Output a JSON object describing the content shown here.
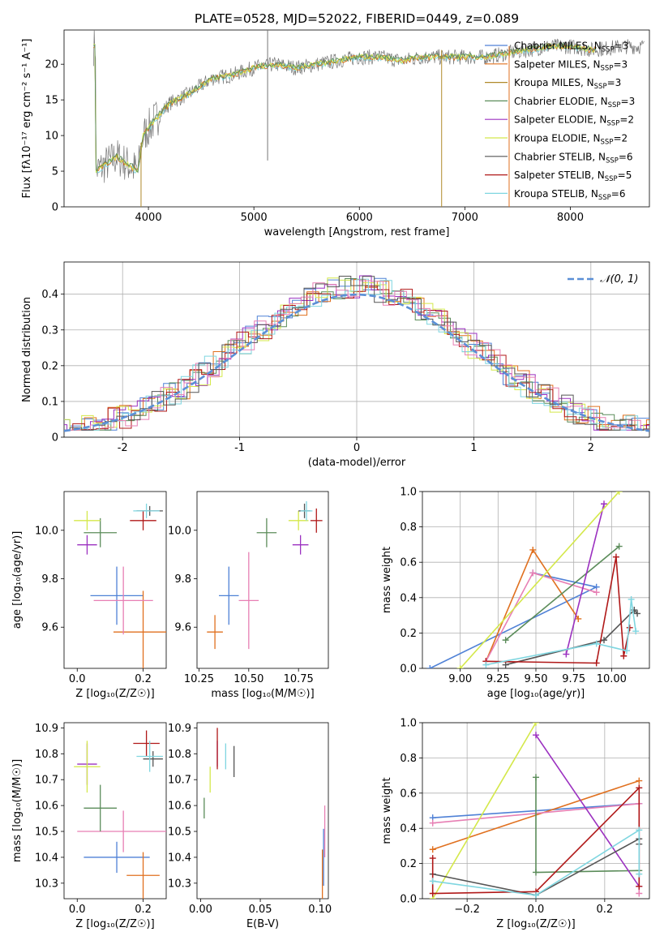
{
  "title": "PLATE=0528, MJD=52022, FIBERID=0449, z=0.089",
  "colors": {
    "Chabrier MILES": "#4f81d6",
    "Salpeter MILES": "#e0701f",
    "Kroupa MILES": "#b08a2a",
    "Chabrier ELODIE": "#5b8c5a",
    "Salpeter ELODIE": "#9b30c0",
    "Kroupa ELODIE": "#d4e84a",
    "Chabrier STELIB": "#555555",
    "Salpeter STELIB": "#b01818",
    "Kroupa STELIB": "#7fd6e0",
    "Pink model": "#e77fb4",
    "Normal curve": "#5b8fd6"
  },
  "chart_data": [
    {
      "id": "spectrum",
      "type": "line",
      "title": "PLATE=0528, MJD=52022, FIBERID=0449, z=0.089",
      "xlabel": "wavelength [Angstrom, rest frame]",
      "ylabel": "Flux [fλ10⁻¹⁷ erg cm⁻² s⁻¹ A⁻¹]",
      "xlim": [
        3200,
        8750
      ],
      "ylim": [
        0,
        24.8
      ],
      "xticks": [
        4000,
        5000,
        6000,
        7000,
        8000
      ],
      "yticks": [
        0,
        5,
        10,
        15,
        20
      ],
      "grid": false,
      "legend_position": "right",
      "legend": [
        {
          "label": "Chabrier MILES, N_SSP=3",
          "color": "#4f81d6"
        },
        {
          "label": "Salpeter MILES, N_SSP=3",
          "color": "#e0701f"
        },
        {
          "label": "Kroupa MILES, N_SSP=3",
          "color": "#b08a2a"
        },
        {
          "label": "Chabrier ELODIE, N_SSP=3",
          "color": "#5b8c5a"
        },
        {
          "label": "Salpeter ELODIE, N_SSP=2",
          "color": "#9b30c0"
        },
        {
          "label": "Kroupa ELODIE, N_SSP=2",
          "color": "#d4e84a"
        },
        {
          "label": "Chabrier STELIB, N_SSP=6",
          "color": "#555555"
        },
        {
          "label": "Salpeter STELIB, N_SSP=5",
          "color": "#b01818"
        },
        {
          "label": "Kroupa STELIB, N_SSP=6",
          "color": "#7fd6e0"
        }
      ],
      "continuum": {
        "x": [
          3500,
          3700,
          3900,
          3950,
          4050,
          4200,
          4400,
          4600,
          4800,
          5000,
          5200,
          5400,
          5600,
          5800,
          6000,
          6200,
          6400,
          6600,
          6800,
          7000,
          7200,
          7400,
          7600,
          7800,
          8000,
          8200,
          8500
        ],
        "y": [
          5,
          7,
          5,
          10,
          12,
          14.5,
          16,
          18,
          18.5,
          19.5,
          20,
          19.5,
          20,
          20.5,
          21,
          21,
          20.5,
          21,
          21,
          21,
          21,
          21.5,
          22,
          22.5,
          22.5,
          22,
          22.5
        ]
      },
      "spike_lines_x": [
        3930,
        6780,
        7420,
        5130
      ]
    },
    {
      "id": "residuals",
      "type": "line",
      "xlabel": "(data-model)/error",
      "ylabel": "Normed distribution",
      "xlim": [
        -2.5,
        2.5
      ],
      "ylim": [
        0,
        0.49
      ],
      "xticks": [
        -2,
        -1,
        0,
        1,
        2
      ],
      "yticks": [
        0.0,
        0.1,
        0.2,
        0.3,
        0.4
      ],
      "grid": true,
      "legend_position": "top-right",
      "legend": [
        {
          "label": "𝒩(0, 1)",
          "style": "dashed",
          "color": "#5b8fd6"
        }
      ]
    },
    {
      "id": "age_vs_Z",
      "type": "scatter",
      "xlabel": "Z [log₁₀(Z/Z☉)]",
      "ylabel": "age [log₁₀(age/yr)]",
      "xlim": [
        -0.04,
        0.27
      ],
      "ylim": [
        9.43,
        10.16
      ],
      "xticks": [
        0.0,
        0.2
      ],
      "xticklabels": [
        "0.0",
        "0.2"
      ],
      "yticks": [
        9.6,
        9.8,
        10.0
      ],
      "yticklabels": [
        "9.6",
        "9.8",
        "10.0"
      ],
      "grid": false,
      "points": [
        {
          "model": "Chabrier MILES",
          "x": 0.12,
          "y": 9.73,
          "xerr": 0.08,
          "yerr": 0.12
        },
        {
          "model": "Salpeter MILES",
          "x": 0.2,
          "y": 9.58,
          "xerr": 0.09,
          "yerr": 0.17
        },
        {
          "model": "Pink",
          "x": 0.14,
          "y": 9.71,
          "xerr": 0.09,
          "yerr": 0.14
        },
        {
          "model": "Chabrier ELODIE",
          "x": 0.07,
          "y": 9.99,
          "xerr": 0.05,
          "yerr": 0.06
        },
        {
          "model": "Salpeter ELODIE",
          "x": 0.03,
          "y": 9.94,
          "xerr": 0.03,
          "yerr": 0.04
        },
        {
          "model": "Kroupa ELODIE",
          "x": 0.03,
          "y": 10.04,
          "xerr": 0.04,
          "yerr": 0.04
        },
        {
          "model": "Salpeter STELIB",
          "x": 0.2,
          "y": 10.04,
          "xerr": 0.04,
          "yerr": 0.04
        },
        {
          "model": "Chabrier STELIB",
          "x": 0.22,
          "y": 10.08,
          "xerr": 0.04,
          "yerr": 0.02
        },
        {
          "model": "Kroupa STELIB",
          "x": 0.21,
          "y": 10.08,
          "xerr": 0.04,
          "yerr": 0.03
        }
      ]
    },
    {
      "id": "age_vs_mass",
      "type": "scatter",
      "xlabel": "mass [log₁₀(M/M☉)]",
      "xlim": [
        10.24,
        10.9
      ],
      "ylim": [
        9.43,
        10.16
      ],
      "xticks": [
        10.25,
        10.5,
        10.75
      ],
      "xticklabels": [
        "10.25",
        "10.50",
        "10.75"
      ],
      "yticks": [
        9.6,
        9.8,
        10.0
      ],
      "yticklabels": [
        "9.6",
        "9.8",
        "10.0"
      ],
      "grid": false,
      "points": [
        {
          "model": "Chabrier MILES",
          "x": 10.4,
          "y": 9.73,
          "xerr": 0.05,
          "yerr": 0.12
        },
        {
          "model": "Salpeter MILES",
          "x": 10.33,
          "y": 9.58,
          "xerr": 0.04,
          "yerr": 0.07
        },
        {
          "model": "Pink",
          "x": 10.5,
          "y": 9.71,
          "xerr": 0.05,
          "yerr": 0.2
        },
        {
          "model": "Chabrier ELODIE",
          "x": 10.59,
          "y": 9.99,
          "xerr": 0.05,
          "yerr": 0.06
        },
        {
          "model": "Salpeter ELODIE",
          "x": 10.76,
          "y": 9.94,
          "xerr": 0.04,
          "yerr": 0.04
        },
        {
          "model": "Kroupa ELODIE",
          "x": 10.75,
          "y": 10.04,
          "xerr": 0.05,
          "yerr": 0.04
        },
        {
          "model": "Salpeter STELIB",
          "x": 10.84,
          "y": 10.04,
          "xerr": 0.03,
          "yerr": 0.05
        },
        {
          "model": "Chabrier STELIB",
          "x": 10.78,
          "y": 10.08,
          "xerr": 0.03,
          "yerr": 0.03
        },
        {
          "model": "Kroupa STELIB",
          "x": 10.79,
          "y": 10.08,
          "xerr": 0.03,
          "yerr": 0.04
        }
      ]
    },
    {
      "id": "weight_vs_age",
      "type": "line",
      "xlabel": "age [log₁₀(age/yr)]",
      "ylabel": "mass weight",
      "xlim": [
        8.75,
        10.25
      ],
      "ylim": [
        0,
        1.0
      ],
      "xticks": [
        9.0,
        9.25,
        9.5,
        9.75,
        10.0
      ],
      "xticklabels": [
        "9.00",
        "9.25",
        "9.50",
        "9.75",
        "10.00"
      ],
      "yticks": [
        0.0,
        0.2,
        0.4,
        0.6,
        0.8,
        1.0
      ],
      "yticklabels": [
        "0.0",
        "0.2",
        "0.4",
        "0.6",
        "0.8",
        "1.0"
      ],
      "grid": true,
      "series": [
        {
          "model": "Chabrier MILES",
          "x": [
            8.8,
            9.9,
            9.48
          ],
          "y": [
            0.0,
            0.46,
            0.54
          ]
        },
        {
          "model": "Salpeter MILES",
          "x": [
            9.17,
            9.48,
            9.78
          ],
          "y": [
            0.04,
            0.67,
            0.28
          ]
        },
        {
          "model": "Pink",
          "x": [
            9.17,
            9.48,
            9.9
          ],
          "y": [
            0.04,
            0.54,
            0.43
          ]
        },
        {
          "model": "Chabrier ELODIE",
          "x": [
            9.3,
            10.05
          ],
          "y": [
            0.16,
            0.69
          ]
        },
        {
          "model": "Salpeter ELODIE",
          "x": [
            9.7,
            9.95
          ],
          "y": [
            0.08,
            0.93
          ]
        },
        {
          "model": "Kroupa ELODIE",
          "x": [
            9.0,
            10.05
          ],
          "y": [
            0.0,
            1.0
          ]
        },
        {
          "model": "Chabrier STELIB",
          "x": [
            9.3,
            9.95,
            10.15,
            10.17
          ],
          "y": [
            0.02,
            0.16,
            0.33,
            0.31
          ]
        },
        {
          "model": "Salpeter STELIB",
          "x": [
            9.17,
            9.9,
            10.03,
            10.08,
            10.12
          ],
          "y": [
            0.04,
            0.03,
            0.63,
            0.07,
            0.23
          ]
        },
        {
          "model": "Kroupa STELIB",
          "x": [
            9.17,
            9.9,
            10.1,
            10.13,
            10.16
          ],
          "y": [
            0.02,
            0.14,
            0.1,
            0.39,
            0.21
          ]
        }
      ]
    },
    {
      "id": "mass_vs_Z",
      "type": "scatter",
      "xlabel": "Z [log₁₀(Z/Z☉)]",
      "ylabel": "mass [log₁₀(M/M☉)]",
      "xlim": [
        -0.04,
        0.27
      ],
      "ylim": [
        10.24,
        10.92
      ],
      "xticks": [
        0.0,
        0.2
      ],
      "xticklabels": [
        "0.0",
        "0.2"
      ],
      "yticks": [
        10.3,
        10.4,
        10.5,
        10.6,
        10.7,
        10.8,
        10.9
      ],
      "yticklabels": [
        "10.3",
        "10.4",
        "10.5",
        "10.6",
        "10.7",
        "10.8",
        "10.9"
      ],
      "grid": false,
      "points": [
        {
          "model": "Chabrier MILES",
          "x": 0.12,
          "y": 10.4,
          "xerr": 0.1,
          "yerr": 0.06
        },
        {
          "model": "Salpeter MILES",
          "x": 0.2,
          "y": 10.33,
          "xerr": 0.05,
          "yerr": 0.09
        },
        {
          "model": "Pink",
          "x": 0.14,
          "y": 10.5,
          "xerr": 0.14,
          "yerr": 0.08
        },
        {
          "model": "Chabrier ELODIE",
          "x": 0.07,
          "y": 10.59,
          "xerr": 0.05,
          "yerr": 0.09
        },
        {
          "model": "Salpeter ELODIE",
          "x": 0.03,
          "y": 10.76,
          "xerr": 0.03,
          "yerr": 0.08
        },
        {
          "model": "Kroupa ELODIE",
          "x": 0.03,
          "y": 10.75,
          "xerr": 0.04,
          "yerr": 0.1
        },
        {
          "model": "Salpeter STELIB",
          "x": 0.21,
          "y": 10.84,
          "xerr": 0.04,
          "yerr": 0.05
        },
        {
          "model": "Chabrier STELIB",
          "x": 0.23,
          "y": 10.78,
          "xerr": 0.03,
          "yerr": 0.03
        },
        {
          "model": "Kroupa STELIB",
          "x": 0.22,
          "y": 10.79,
          "xerr": 0.04,
          "yerr": 0.06
        }
      ]
    },
    {
      "id": "mass_vs_ebv",
      "type": "scatter",
      "xlabel": "E(B-V)",
      "xlim": [
        -0.003,
        0.107
      ],
      "ylim": [
        10.24,
        10.92
      ],
      "xticks": [
        0.0,
        0.05,
        0.1
      ],
      "xticklabels": [
        "0.00",
        "0.05",
        "0.10"
      ],
      "yticks": [
        10.3,
        10.4,
        10.5,
        10.6,
        10.7,
        10.8,
        10.9
      ],
      "yticklabels": [
        "10.3",
        "10.4",
        "10.5",
        "10.6",
        "10.7",
        "10.8",
        "10.9"
      ],
      "grid": false,
      "points": [
        {
          "model": "Chabrier MILES",
          "x": 0.103,
          "y": 10.4,
          "xerr": 0,
          "yerr": 0.11
        },
        {
          "model": "Salpeter MILES",
          "x": 0.102,
          "y": 10.33,
          "xerr": 0,
          "yerr": 0.1
        },
        {
          "model": "Pink",
          "x": 0.104,
          "y": 10.5,
          "xerr": 0,
          "yerr": 0.1
        },
        {
          "model": "Chabrier ELODIE",
          "x": 0.003,
          "y": 10.59,
          "xerr": 0,
          "yerr": 0.04
        },
        {
          "model": "Kroupa ELODIE",
          "x": 0.008,
          "y": 10.7,
          "xerr": 0,
          "yerr": 0.05
        },
        {
          "model": "Salpeter ELODIE",
          "x": 0.014,
          "y": 10.8,
          "xerr": 0,
          "yerr": 0.05
        },
        {
          "model": "Salpeter STELIB",
          "x": 0.014,
          "y": 10.82,
          "xerr": 0,
          "yerr": 0.08
        },
        {
          "model": "Kroupa STELIB",
          "x": 0.021,
          "y": 10.79,
          "xerr": 0,
          "yerr": 0.05
        },
        {
          "model": "Chabrier STELIB",
          "x": 0.028,
          "y": 10.77,
          "xerr": 0,
          "yerr": 0.06
        }
      ]
    },
    {
      "id": "weight_vs_Z",
      "type": "line",
      "xlabel": "Z [log₁₀(Z/Z☉)]",
      "ylabel": "mass weight",
      "xlim": [
        -0.33,
        0.33
      ],
      "ylim": [
        0,
        1.0
      ],
      "xticks": [
        -0.2,
        0.0,
        0.2
      ],
      "xticklabels": [
        "−0.2",
        "0.0",
        "0.2"
      ],
      "yticks": [
        0.0,
        0.2,
        0.4,
        0.6,
        0.8,
        1.0
      ],
      "yticklabels": [
        "0.0",
        "0.2",
        "0.4",
        "0.6",
        "0.8",
        "1.0"
      ],
      "grid": true,
      "series": [
        {
          "model": "Chabrier MILES",
          "x": [
            -0.3,
            0.3
          ],
          "y": [
            0.46,
            0.54
          ]
        },
        {
          "model": "Salpeter MILES",
          "x": [
            -0.3,
            0.3
          ],
          "y": [
            0.28,
            0.67
          ]
        },
        {
          "model": "Pink",
          "x": [
            -0.3,
            0.3,
            0.3
          ],
          "y": [
            0.43,
            0.54,
            0.03
          ]
        },
        {
          "model": "Chabrier ELODIE",
          "x": [
            0.0,
            0.0,
            0.3
          ],
          "y": [
            0.69,
            0.15,
            0.16
          ]
        },
        {
          "model": "Salpeter ELODIE",
          "x": [
            0.0,
            0.3
          ],
          "y": [
            0.93,
            0.07
          ]
        },
        {
          "model": "Kroupa ELODIE",
          "x": [
            -0.3,
            0.0
          ],
          "y": [
            0.0,
            1.0
          ]
        },
        {
          "model": "Chabrier STELIB",
          "x": [
            -0.3,
            0.0,
            0.3,
            0.3
          ],
          "y": [
            0.14,
            0.02,
            0.34,
            0.31
          ]
        },
        {
          "model": "Salpeter STELIB",
          "x": [
            -0.3,
            -0.3,
            0.0,
            0.3,
            0.3
          ],
          "y": [
            0.23,
            0.03,
            0.04,
            0.63,
            0.07
          ]
        },
        {
          "model": "Kroupa STELIB",
          "x": [
            -0.3,
            0.0,
            0.3,
            0.3
          ],
          "y": [
            0.1,
            0.02,
            0.39,
            0.14
          ]
        }
      ]
    }
  ]
}
